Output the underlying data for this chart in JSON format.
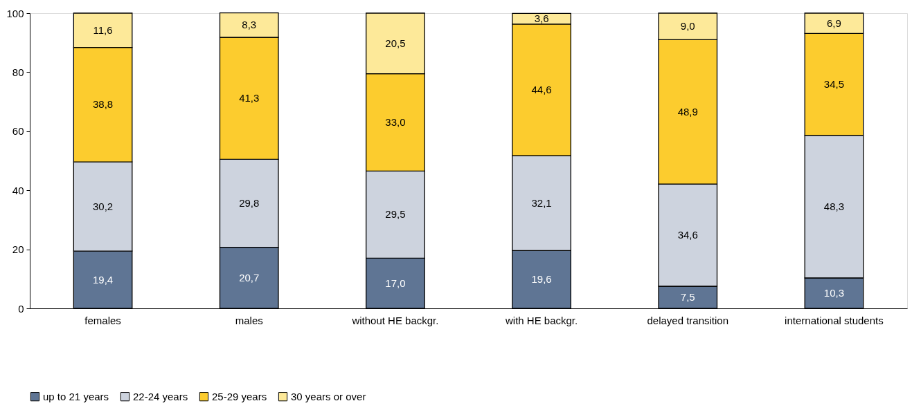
{
  "chart_data": {
    "type": "bar",
    "stacked": true,
    "categories": [
      "females",
      "males",
      "without HE backgr.",
      "with HE backgr.",
      "delayed transition",
      "international students"
    ],
    "series": [
      {
        "name": "up to 21 years",
        "color": "#5f7594",
        "values": [
          19.4,
          20.7,
          17.0,
          19.6,
          7.5,
          10.3
        ],
        "value_labels": [
          "19,4",
          "20,7",
          "17,0",
          "19,6",
          "7,5",
          "10,3"
        ]
      },
      {
        "name": "22-24 years",
        "color": "#cdd3de",
        "values": [
          30.2,
          29.8,
          29.5,
          32.1,
          34.6,
          48.3
        ],
        "value_labels": [
          "30,2",
          "29,8",
          "29,5",
          "32,1",
          "34,6",
          "48,3"
        ]
      },
      {
        "name": "25-29 years",
        "color": "#fccc2e",
        "values": [
          38.8,
          41.3,
          33.0,
          44.6,
          48.9,
          34.5
        ],
        "value_labels": [
          "38,8",
          "41,3",
          "33,0",
          "44,6",
          "48,9",
          "34,5"
        ]
      },
      {
        "name": "30 years or over",
        "color": "#fde999",
        "values": [
          11.6,
          8.3,
          20.5,
          3.6,
          9.0,
          6.9
        ],
        "value_labels": [
          "11,6",
          "8,3",
          "20,5",
          "3,6",
          "9,0",
          "6,9"
        ]
      }
    ],
    "ylim": [
      0,
      100
    ],
    "yticks": [
      0,
      20,
      40,
      60,
      80,
      100
    ],
    "legend": "bottom"
  }
}
